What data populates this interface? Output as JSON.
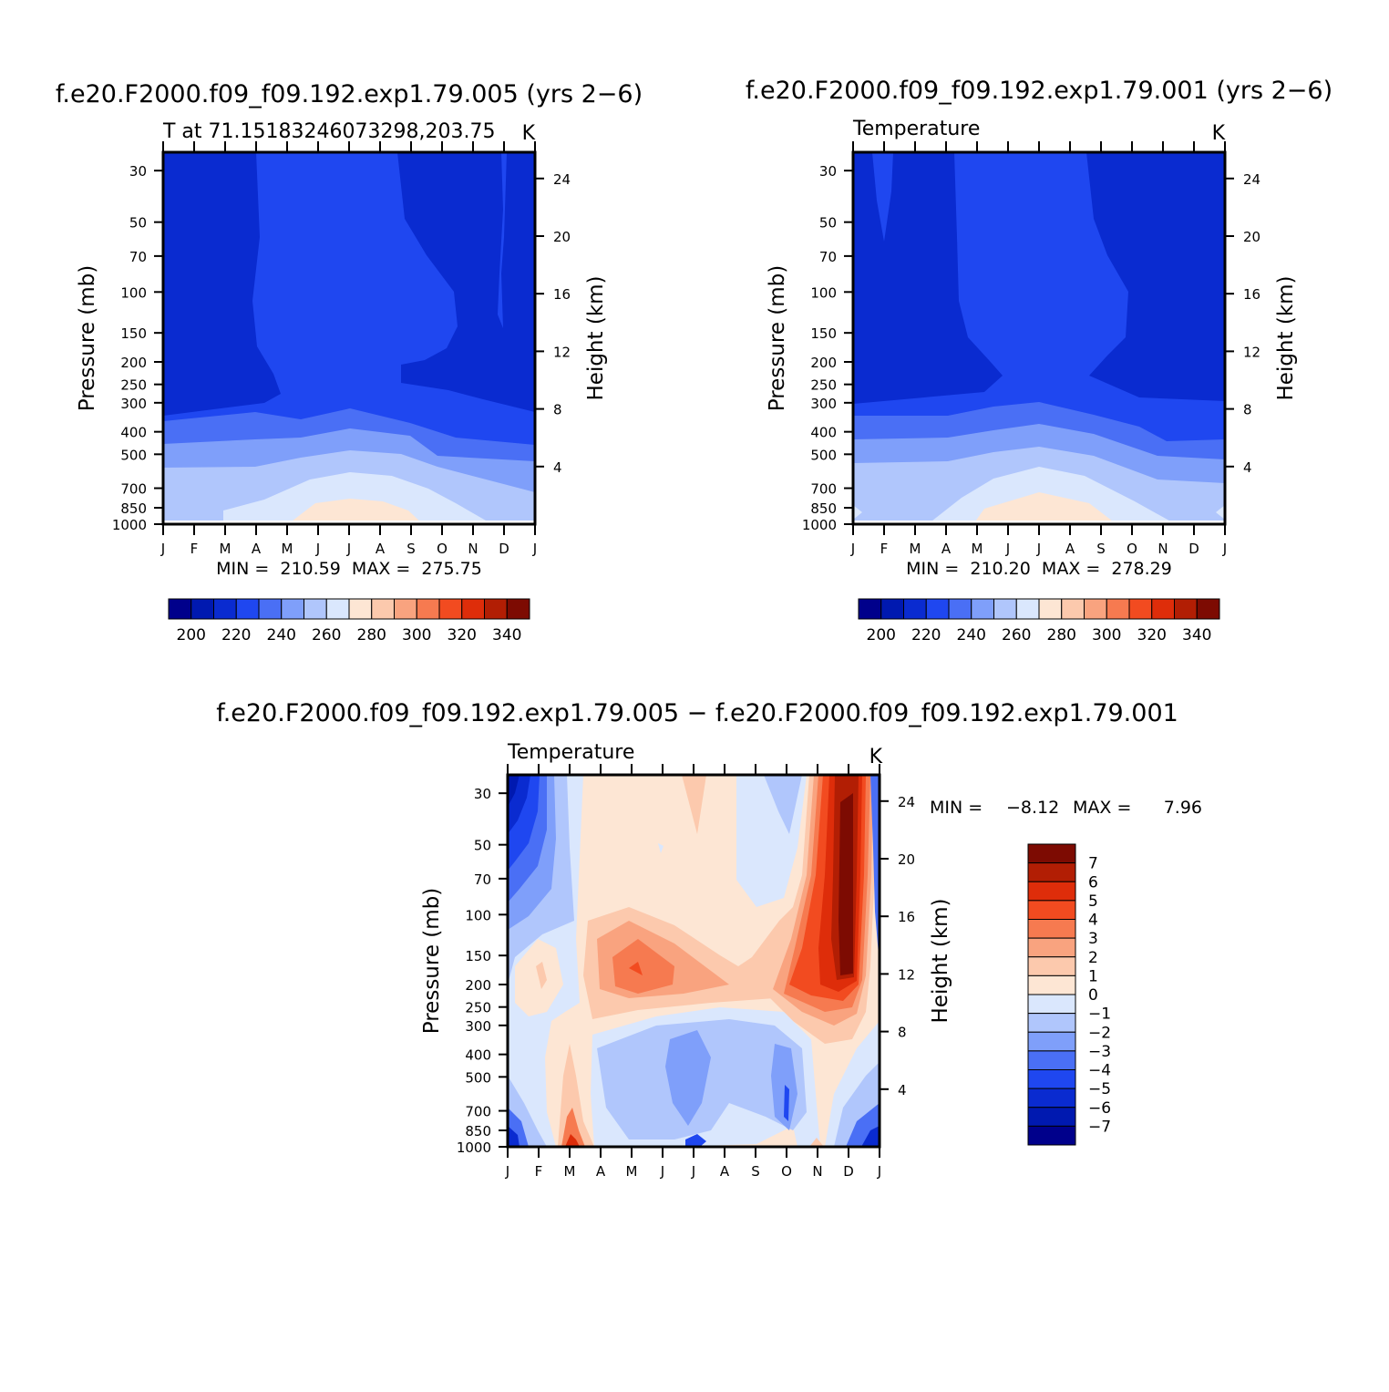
{
  "chart_data": [
    {
      "type": "contour",
      "title": "f.e20.F2000.f09_f09.192.exp1.79.005 (yrs 2−6)",
      "subtitle_left": "T at 71.15183246073298,203.75",
      "subtitle_right": "K",
      "xlabel": "",
      "ylabel": "Pressure (mb)",
      "ylabel_right": "Height (km)",
      "x_ticks": [
        "J",
        "F",
        "M",
        "A",
        "M",
        "J",
        "J",
        "A",
        "S",
        "O",
        "N",
        "D",
        "J"
      ],
      "y_ticks": [
        30,
        50,
        70,
        100,
        150,
        200,
        250,
        300,
        400,
        500,
        700,
        850,
        1000
      ],
      "y_ticks_right": [
        24,
        20,
        16,
        12,
        8,
        4
      ],
      "ylim": [
        1000,
        25
      ],
      "y_scale": "log",
      "min_max_text": "MIN =  210.59  MAX =  275.75",
      "min": 210.59,
      "max": 275.75,
      "colorbar": {
        "orientation": "horizontal",
        "labels": [
          "200",
          "220",
          "240",
          "260",
          "280",
          "300",
          "320",
          "340"
        ],
        "colors": [
          "#00008b",
          "#0019b0",
          "#0a2bd0",
          "#1f47f0",
          "#4a6ff5",
          "#7f9ffa",
          "#b0c6fc",
          "#dae7fd",
          "#fde6d4",
          "#fcc9ad",
          "#f9a37f",
          "#f67a50",
          "#f24b20",
          "#de2d0a",
          "#b21e04",
          "#7d0b02"
        ]
      }
    },
    {
      "type": "contour",
      "title": "f.e20.F2000.f09_f09.192.exp1.79.001 (yrs 2−6)",
      "subtitle_left": "Temperature",
      "subtitle_right": "K",
      "xlabel": "",
      "ylabel": "Pressure (mb)",
      "ylabel_right": "Height (km)",
      "x_ticks": [
        "J",
        "F",
        "M",
        "A",
        "M",
        "J",
        "J",
        "A",
        "S",
        "O",
        "N",
        "D",
        "J"
      ],
      "y_ticks": [
        30,
        50,
        70,
        100,
        150,
        200,
        250,
        300,
        400,
        500,
        700,
        850,
        1000
      ],
      "y_ticks_right": [
        24,
        20,
        16,
        12,
        8,
        4
      ],
      "ylim": [
        1000,
        25
      ],
      "y_scale": "log",
      "min_max_text": "MIN =  210.20  MAX =  278.29",
      "min": 210.2,
      "max": 278.29,
      "colorbar": {
        "orientation": "horizontal",
        "labels": [
          "200",
          "220",
          "240",
          "260",
          "280",
          "300",
          "320",
          "340"
        ],
        "colors": [
          "#00008b",
          "#0019b0",
          "#0a2bd0",
          "#1f47f0",
          "#4a6ff5",
          "#7f9ffa",
          "#b0c6fc",
          "#dae7fd",
          "#fde6d4",
          "#fcc9ad",
          "#f9a37f",
          "#f67a50",
          "#f24b20",
          "#de2d0a",
          "#b21e04",
          "#7d0b02"
        ]
      }
    },
    {
      "type": "contour",
      "title": "f.e20.F2000.f09_f09.192.exp1.79.005 − f.e20.F2000.f09_f09.192.exp1.79.001",
      "subtitle_left": "Temperature",
      "subtitle_right": "K",
      "xlabel": "",
      "ylabel": "Pressure (mb)",
      "ylabel_right": "Height (km)",
      "x_ticks": [
        "J",
        "F",
        "M",
        "A",
        "M",
        "J",
        "J",
        "A",
        "S",
        "O",
        "N",
        "D",
        "J"
      ],
      "y_ticks": [
        30,
        50,
        70,
        100,
        150,
        200,
        250,
        300,
        400,
        500,
        700,
        850,
        1000
      ],
      "y_ticks_right": [
        24,
        20,
        16,
        12,
        8,
        4
      ],
      "ylim": [
        1000,
        25
      ],
      "y_scale": "log",
      "min_label": "MIN =",
      "min_value": "−8.12",
      "max_label": "MAX =",
      "max_value": "7.96",
      "min": -8.12,
      "max": 7.96,
      "colorbar": {
        "orientation": "vertical",
        "labels": [
          "7",
          "6",
          "5",
          "4",
          "3",
          "2",
          "1",
          "0",
          "−1",
          "−2",
          "−3",
          "−4",
          "−5",
          "−6",
          "−7"
        ],
        "colors": [
          "#7d0b02",
          "#b21e04",
          "#de2d0a",
          "#f24b20",
          "#f67a50",
          "#f9a37f",
          "#fcc9ad",
          "#fde6d4",
          "#dae7fd",
          "#b0c6fc",
          "#7f9ffa",
          "#4a6ff5",
          "#1f47f0",
          "#0a2bd0",
          "#0019b0",
          "#00008b"
        ]
      }
    }
  ]
}
